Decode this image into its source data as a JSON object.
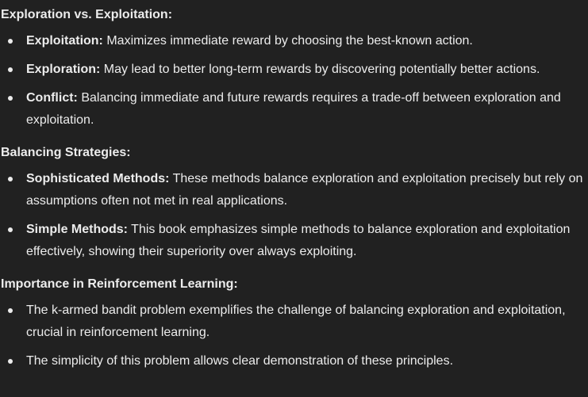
{
  "sections": [
    {
      "heading": "Exploration vs. Exploitation:",
      "items": [
        {
          "term": "Exploitation:",
          "text": " Maximizes immediate reward by choosing the best-known action."
        },
        {
          "term": "Exploration:",
          "text": " May lead to better long-term rewards by discovering potentially better actions."
        },
        {
          "term": "Conflict:",
          "text": " Balancing immediate and future rewards requires a trade-off between exploration and exploitation."
        }
      ]
    },
    {
      "heading": "Balancing Strategies:",
      "items": [
        {
          "term": "Sophisticated Methods:",
          "text": " These methods balance exploration and exploitation precisely but rely on assumptions often not met in real applications."
        },
        {
          "term": "Simple Methods:",
          "text": " This book emphasizes simple methods to balance exploration and exploitation effectively, showing their superiority over always exploiting."
        }
      ]
    },
    {
      "heading": "Importance in Reinforcement Learning:",
      "items": [
        {
          "text": "The k-armed bandit problem exemplifies the challenge of balancing exploration and exploitation, crucial in reinforcement learning."
        },
        {
          "text": "The simplicity of this problem allows clear demonstration of these principles."
        }
      ]
    }
  ]
}
